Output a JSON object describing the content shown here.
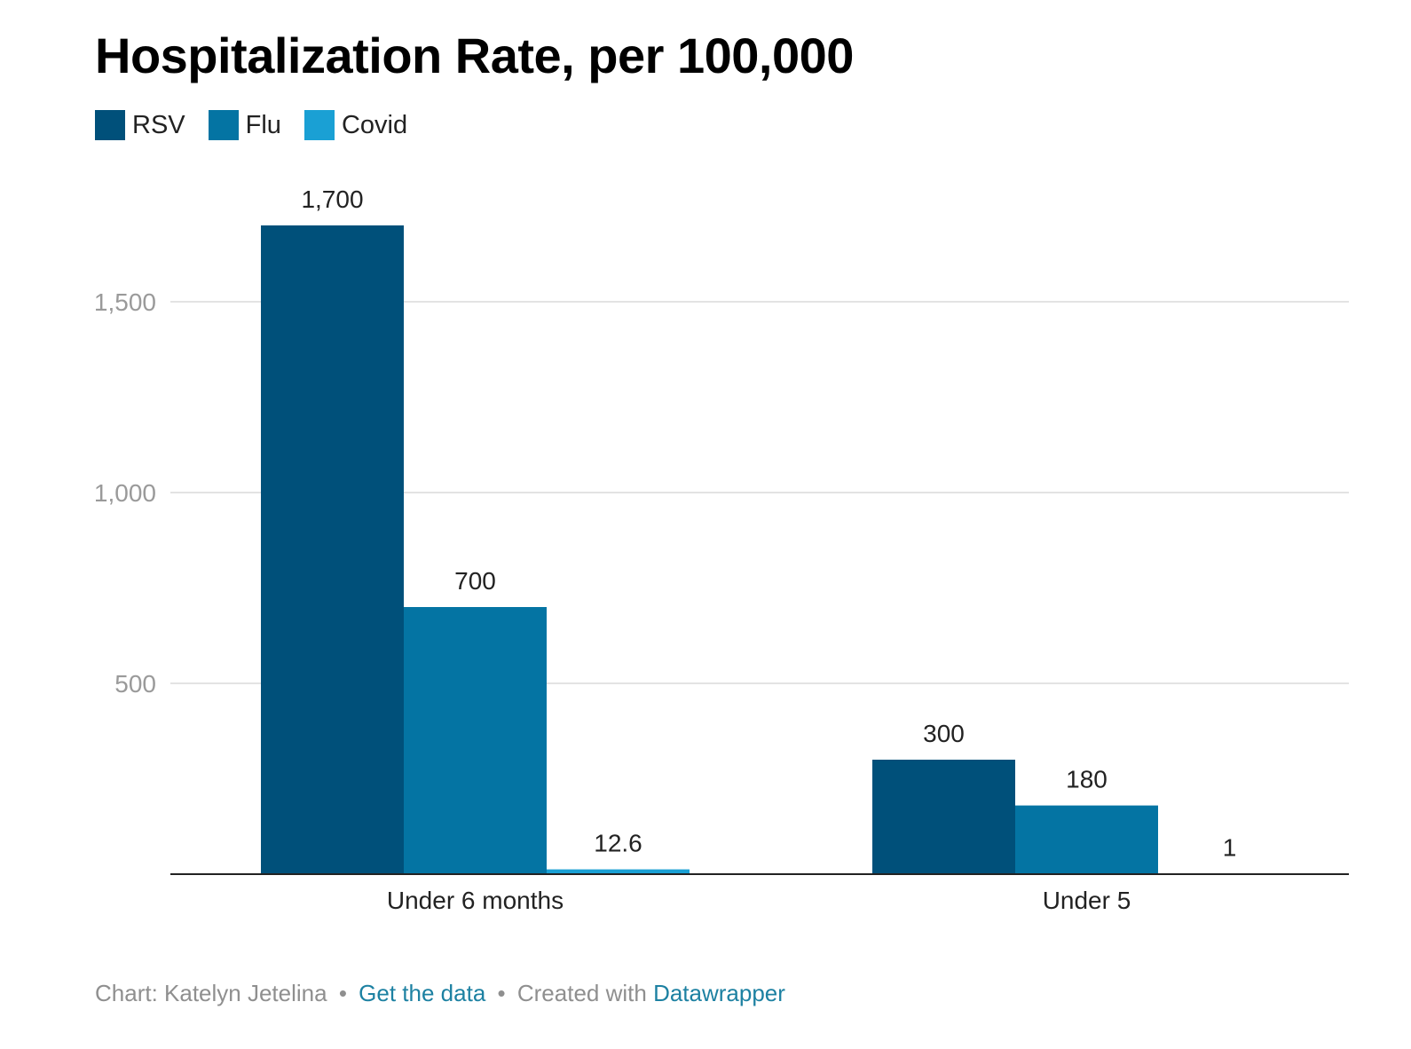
{
  "chart_data": {
    "type": "bar",
    "title": "Hospitalization Rate, per 100,000",
    "categories": [
      "Under 6 months",
      "Under 5"
    ],
    "series": [
      {
        "name": "RSV",
        "values": [
          1700,
          300
        ],
        "labels": [
          "1,700",
          "300"
        ],
        "color": "#00507a"
      },
      {
        "name": "Flu",
        "values": [
          700,
          180
        ],
        "labels": [
          "700",
          "180"
        ],
        "color": "#0474a3"
      },
      {
        "name": "Covid",
        "values": [
          12.6,
          1
        ],
        "labels": [
          "12.6",
          "1"
        ],
        "color": "#1aa0d4"
      }
    ],
    "ylim": [
      0,
      1700
    ],
    "yticks": [
      500,
      1000,
      1500
    ],
    "ytick_labels": [
      "500",
      "1,000",
      "1,500"
    ],
    "grid": true,
    "legend_position": "top-left",
    "xlabel": "",
    "ylabel": ""
  },
  "footer": {
    "credit": "Chart: Katelyn Jetelina",
    "separator": "•",
    "data_link": "Get the data",
    "created_with": "Created with",
    "tool_link": "Datawrapper",
    "link_color": "#1d81a2",
    "text_color": "#8f8f8f"
  }
}
